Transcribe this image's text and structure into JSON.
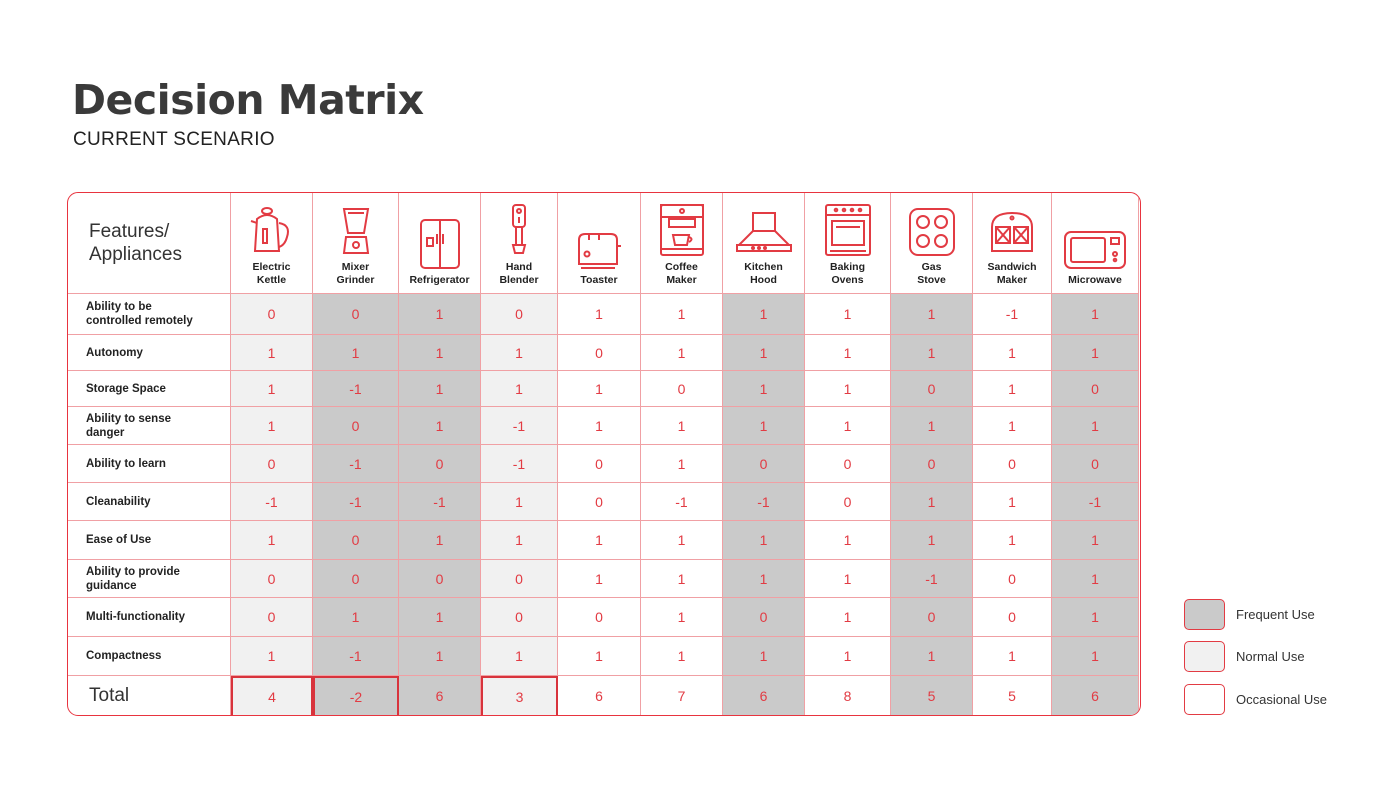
{
  "title": "Decision Matrix",
  "subtitle": "CURRENT SCENARIO",
  "corner_label": "Features/\nAppliances",
  "total_label": "Total",
  "colors": {
    "accent": "#e23b43",
    "frequent": "#cacaca",
    "normal": "#f1f1f1",
    "occasional": "#ffffff"
  },
  "appliances": [
    {
      "name": "Electric\nKettle",
      "icon": "kettle-icon",
      "usage": "normal"
    },
    {
      "name": "Mixer\nGrinder",
      "icon": "mixer-grinder-icon",
      "usage": "frequent"
    },
    {
      "name": "Refrigerator",
      "icon": "refrigerator-icon",
      "usage": "frequent"
    },
    {
      "name": "Hand\nBlender",
      "icon": "hand-blender-icon",
      "usage": "normal"
    },
    {
      "name": "Toaster",
      "icon": "toaster-icon",
      "usage": "occasional"
    },
    {
      "name": "Coffee\nMaker",
      "icon": "coffee-maker-icon",
      "usage": "occasional"
    },
    {
      "name": "Kitchen\nHood",
      "icon": "kitchen-hood-icon",
      "usage": "frequent"
    },
    {
      "name": "Baking\nOvens",
      "icon": "baking-oven-icon",
      "usage": "occasional"
    },
    {
      "name": "Gas\nStove",
      "icon": "gas-stove-icon",
      "usage": "frequent"
    },
    {
      "name": "Sandwich\nMaker",
      "icon": "sandwich-maker-icon",
      "usage": "occasional"
    },
    {
      "name": "Microwave",
      "icon": "microwave-icon",
      "usage": "frequent"
    }
  ],
  "rows": [
    {
      "feature": "Ability to be\ncontrolled remotely",
      "values": [
        "0",
        "0",
        "1",
        "0",
        "1",
        "1",
        "1",
        "1",
        "1",
        "-1",
        "1"
      ]
    },
    {
      "feature": "Autonomy",
      "values": [
        "1",
        "1",
        "1",
        "1",
        "0",
        "1",
        "1",
        "1",
        "1",
        "1",
        "1"
      ]
    },
    {
      "feature": "Storage Space",
      "values": [
        "1",
        "-1",
        "1",
        "1",
        "1",
        "0",
        "1",
        "1",
        "0",
        "1",
        "0"
      ]
    },
    {
      "feature": "Ability to sense\ndanger",
      "values": [
        "1",
        "0",
        "1",
        "-1",
        "1",
        "1",
        "1",
        "1",
        "1",
        "1",
        "1"
      ]
    },
    {
      "feature": "Ability to learn",
      "values": [
        "0",
        "-1",
        "0",
        "-1",
        "0",
        "1",
        "0",
        "0",
        "0",
        "0",
        "0"
      ]
    },
    {
      "feature": "Cleanability",
      "values": [
        "-1",
        "-1",
        "-1",
        "1",
        "0",
        "-1",
        "-1",
        "0",
        "1",
        "1",
        "-1"
      ]
    },
    {
      "feature": "Ease of Use",
      "values": [
        "1",
        "0",
        "1",
        "1",
        "1",
        "1",
        "1",
        "1",
        "1",
        "1",
        "1"
      ]
    },
    {
      "feature": "Ability to provide\nguidance",
      "values": [
        "0",
        "0",
        "0",
        "0",
        "1",
        "1",
        "1",
        "1",
        "-1",
        "0",
        "1"
      ]
    },
    {
      "feature": "Multi-functionality",
      "values": [
        "0",
        "1",
        "1",
        "0",
        "0",
        "1",
        "0",
        "1",
        "0",
        "0",
        "1"
      ]
    },
    {
      "feature": "Compactness",
      "values": [
        "1",
        "-1",
        "1",
        "1",
        "1",
        "1",
        "1",
        "1",
        "1",
        "1",
        "1"
      ]
    }
  ],
  "totals": [
    "4",
    "-2",
    "6",
    "3",
    "6",
    "7",
    "6",
    "8",
    "5",
    "5",
    "6"
  ],
  "highlighted_totals": [
    0,
    1,
    3
  ],
  "legend": [
    {
      "label": "Frequent Use",
      "usage": "frequent"
    },
    {
      "label": "Normal Use",
      "usage": "normal"
    },
    {
      "label": "Occasional Use",
      "usage": "occasional"
    }
  ]
}
